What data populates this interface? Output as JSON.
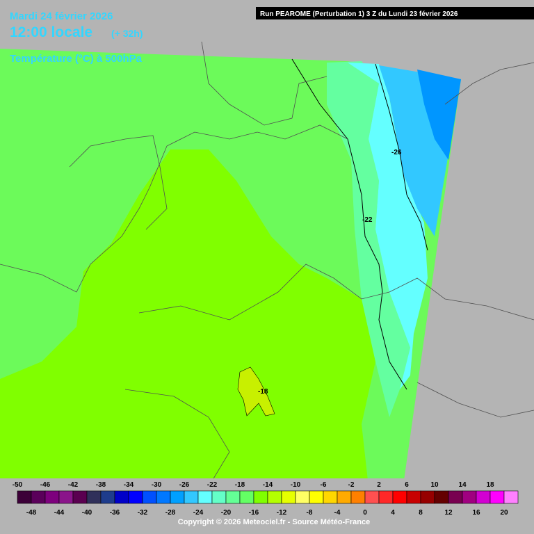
{
  "header": {
    "date": "Mardi 24 février 2026",
    "time": "12:00 locale",
    "lead": "(+ 32h)",
    "field": "Température (°C) à 500hPa",
    "run": "Run PEAROME (Perturbation 1) 3 Z du Lundi 23 février 2026"
  },
  "contour_labels": [
    "-26",
    "-22",
    "-18"
  ],
  "colorbar": {
    "ticks": [
      -50,
      -48,
      -46,
      -44,
      -42,
      -40,
      -38,
      -36,
      -34,
      -32,
      -30,
      -28,
      -26,
      -24,
      -22,
      -20,
      -18,
      -16,
      -14,
      -12,
      -10,
      -8,
      -6,
      -4,
      -2,
      0,
      2,
      4,
      6,
      8,
      10,
      12,
      14,
      16,
      18,
      20
    ],
    "colors": [
      "#3c0038",
      "#5a005a",
      "#7d007d",
      "#8a148a",
      "#5a0050",
      "#30305a",
      "#1e3c8c",
      "#0000c8",
      "#0000ff",
      "#0050ff",
      "#0078ff",
      "#00a0ff",
      "#32c8ff",
      "#64ffff",
      "#64ffc8",
      "#64ff96",
      "#64ff64",
      "#80ff00",
      "#b4ff00",
      "#e6ff00",
      "#ffff64",
      "#ffff00",
      "#ffd700",
      "#ffaa00",
      "#ff8000",
      "#ff5050",
      "#ff2828",
      "#ff0000",
      "#c80000",
      "#960000",
      "#640000",
      "#780050",
      "#a00080",
      "#d200d2",
      "#ff00ff",
      "#ff80ff"
    ]
  },
  "footer": "Copyright © 2026 Meteociel.fr - Source Météo-France"
}
